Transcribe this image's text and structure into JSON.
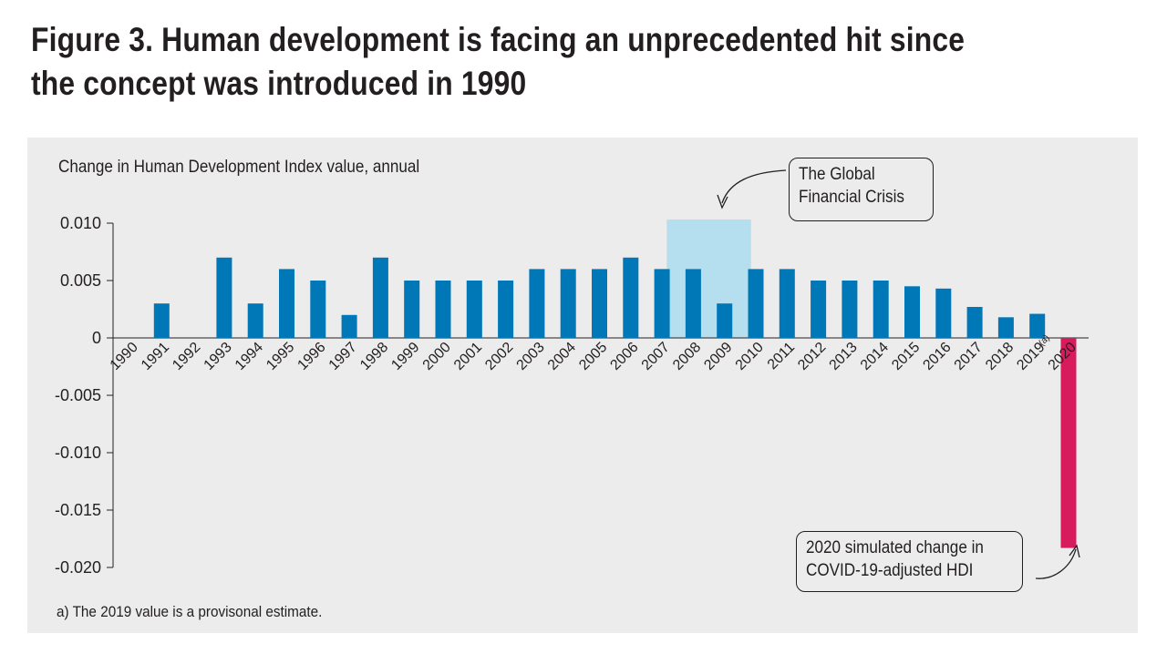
{
  "title": "Figure 3. Human development is facing an unprecedented hit since the concept was introduced in 1990",
  "note": "a) The 2019 value is a provisonal estimate.",
  "callouts": {
    "gfc": [
      "The Global",
      "Financial Crisis"
    ],
    "covid": [
      "2020 simulated change in",
      "COVID-19-adjusted HDI"
    ]
  },
  "colors": {
    "bar": "#0077b6",
    "bar_highlight": "#d81b5c",
    "crisis_band": "#b5dfee",
    "panel": "#ececec"
  },
  "chart_data": {
    "type": "bar",
    "ylabel": "Change in Human Development Index value, annual",
    "ylim": [
      -0.02,
      0.01
    ],
    "yticks": [
      0.01,
      0.005,
      0,
      -0.005,
      -0.01,
      -0.015,
      -0.02
    ],
    "ytick_labels": [
      "0.010",
      "0.005",
      "0",
      "-0.005",
      "-0.010",
      "-0.015",
      "-0.020"
    ],
    "categories": [
      "1990",
      "1991",
      "1992",
      "1993",
      "1994",
      "1995",
      "1996",
      "1997",
      "1998",
      "1999",
      "2000",
      "2001",
      "2002",
      "2003",
      "2004",
      "2005",
      "2006",
      "2007",
      "2008",
      "2009",
      "2010",
      "2011",
      "2012",
      "2013",
      "2014",
      "2015",
      "2016",
      "2017",
      "2018",
      "2019",
      "2020"
    ],
    "category_superscripts": {
      "2019": "(a)"
    },
    "values": [
      0,
      0.003,
      0,
      0.007,
      0.003,
      0.006,
      0.005,
      0.002,
      0.007,
      0.005,
      0.005,
      0.005,
      0.005,
      0.006,
      0.006,
      0.006,
      0.007,
      0.006,
      0.006,
      0.003,
      0.006,
      0.006,
      0.005,
      0.005,
      0.005,
      0.0045,
      0.0043,
      0.0027,
      0.0018,
      0.0021,
      -0.0183
    ],
    "highlight_category": "2020",
    "shaded_span": [
      "2008",
      "2009"
    ],
    "grid": false,
    "legend": "none"
  }
}
